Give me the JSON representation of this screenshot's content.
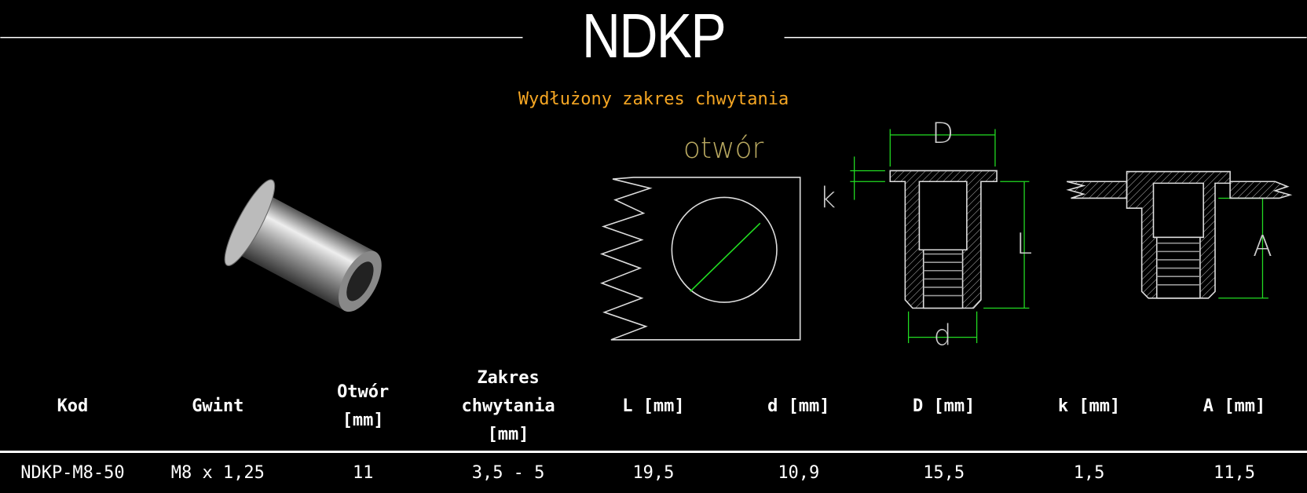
{
  "header": {
    "title": "NDKP",
    "subtitle": "Wydłużony zakres chwytania"
  },
  "diagram": {
    "hole_label": "otwór",
    "dim_D": "D",
    "dim_k": "k",
    "dim_L": "L",
    "dim_d": "d",
    "dim_A": "A"
  },
  "table": {
    "columns": [
      "Kod",
      "Gwint",
      "Otwór [mm]",
      "Zakres chwytania [mm]",
      "L [mm]",
      "d [mm]",
      "D [mm]",
      "k [mm]",
      "A [mm]"
    ],
    "rows": [
      [
        "NDKP-M8-50",
        "M8 x 1,25",
        "11",
        "3,5 - 5",
        "19,5",
        "10,9",
        "15,5",
        "1,5",
        "11,5"
      ]
    ]
  }
}
